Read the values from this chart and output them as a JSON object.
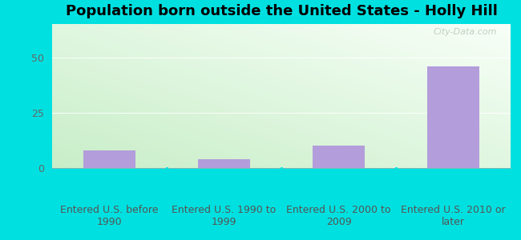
{
  "title": "Population born outside the United States - Holly Hill",
  "categories": [
    "Entered U.S. before\n1990",
    "Entered U.S. 1990 to\n1999",
    "Entered U.S. 2000 to\n2009",
    "Entered U.S. 2010 or\nlater"
  ],
  "values": [
    8,
    4,
    10,
    46
  ],
  "bar_color": "#b39ddb",
  "ylim": [
    0,
    65
  ],
  "yticks": [
    0,
    25,
    50
  ],
  "background_outer": "#00e0e0",
  "title_fontsize": 13,
  "tick_fontsize": 9,
  "watermark": "City-Data.com",
  "grid_color": "#ddeecc",
  "bar_width": 0.45
}
